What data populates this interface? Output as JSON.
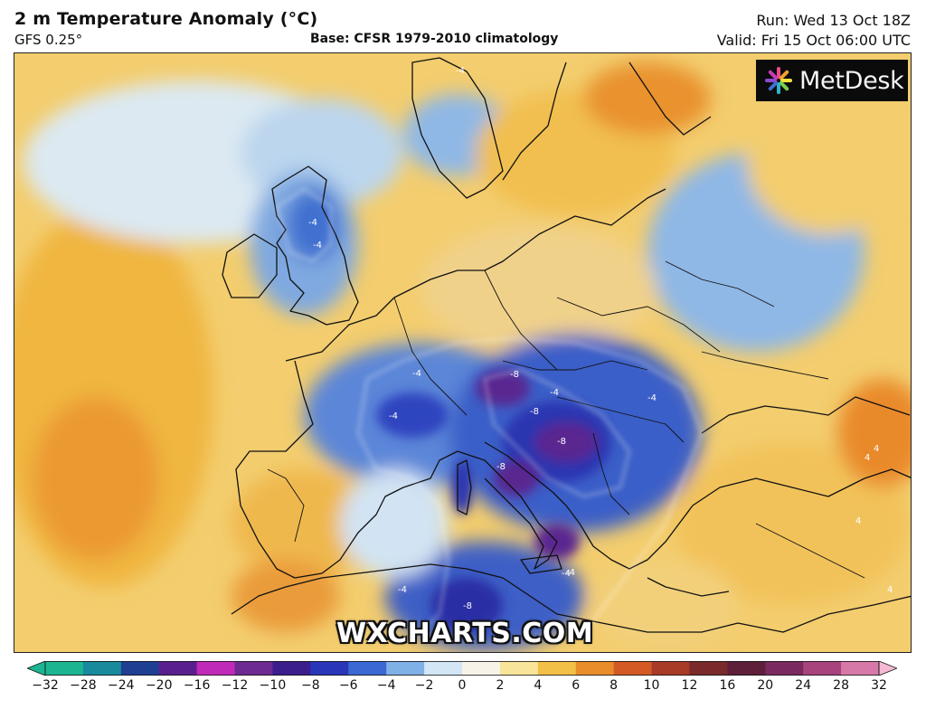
{
  "header": {
    "title": "2 m Temperature Anomaly (°C)",
    "model": "GFS 0.25°",
    "base": "Base: CFSR 1979-2010 climatology",
    "run": "Run: Wed 13 Oct 18Z",
    "valid": "Valid: Fri 15 Oct 06:00 UTC"
  },
  "logo": {
    "text": "MetDesk",
    "icon": "metdesk-star-icon"
  },
  "watermark": "WXCHARTS.COM",
  "contour_labels": [
    "-4",
    "-4",
    "-4",
    "-4",
    "-4",
    "-4",
    "-8",
    "-8",
    "-8",
    "-8",
    "-8",
    "-4",
    "4",
    "4",
    "4",
    "4",
    "-4",
    "-4",
    "-4"
  ],
  "legend": {
    "ticks": [
      "−32",
      "−28",
      "−24",
      "−20",
      "−16",
      "−12",
      "−10",
      "−8",
      "−6",
      "−4",
      "−2",
      "0",
      "2",
      "4",
      "6",
      "8",
      "10",
      "12",
      "16",
      "20",
      "24",
      "28",
      "32"
    ],
    "colors": {
      "c_m32": "#1bb592",
      "c_m28": "#178a9c",
      "c_m24": "#1f3f93",
      "c_m20": "#5a1f8e",
      "c_m16": "#c02ab8",
      "c_m12": "#6d2a92",
      "c_m10": "#3b1e8c",
      "c_m8": "#2a36b8",
      "c_m6": "#3a69d4",
      "c_m4": "#7fb0e6",
      "c_m2": "#d2e6f6",
      "c_0": "#f7f3e8",
      "c_2": "#f8e59a",
      "c_4": "#f2bf47",
      "c_6": "#e98d2a",
      "c_8": "#d35a24",
      "c_10": "#a83a28",
      "c_12": "#7a2a2a",
      "c_16": "#5e1f3a",
      "c_20": "#7a2a5e",
      "c_24": "#a8437e",
      "c_28": "#d679a8",
      "c_32": "#f3b9d3"
    }
  }
}
